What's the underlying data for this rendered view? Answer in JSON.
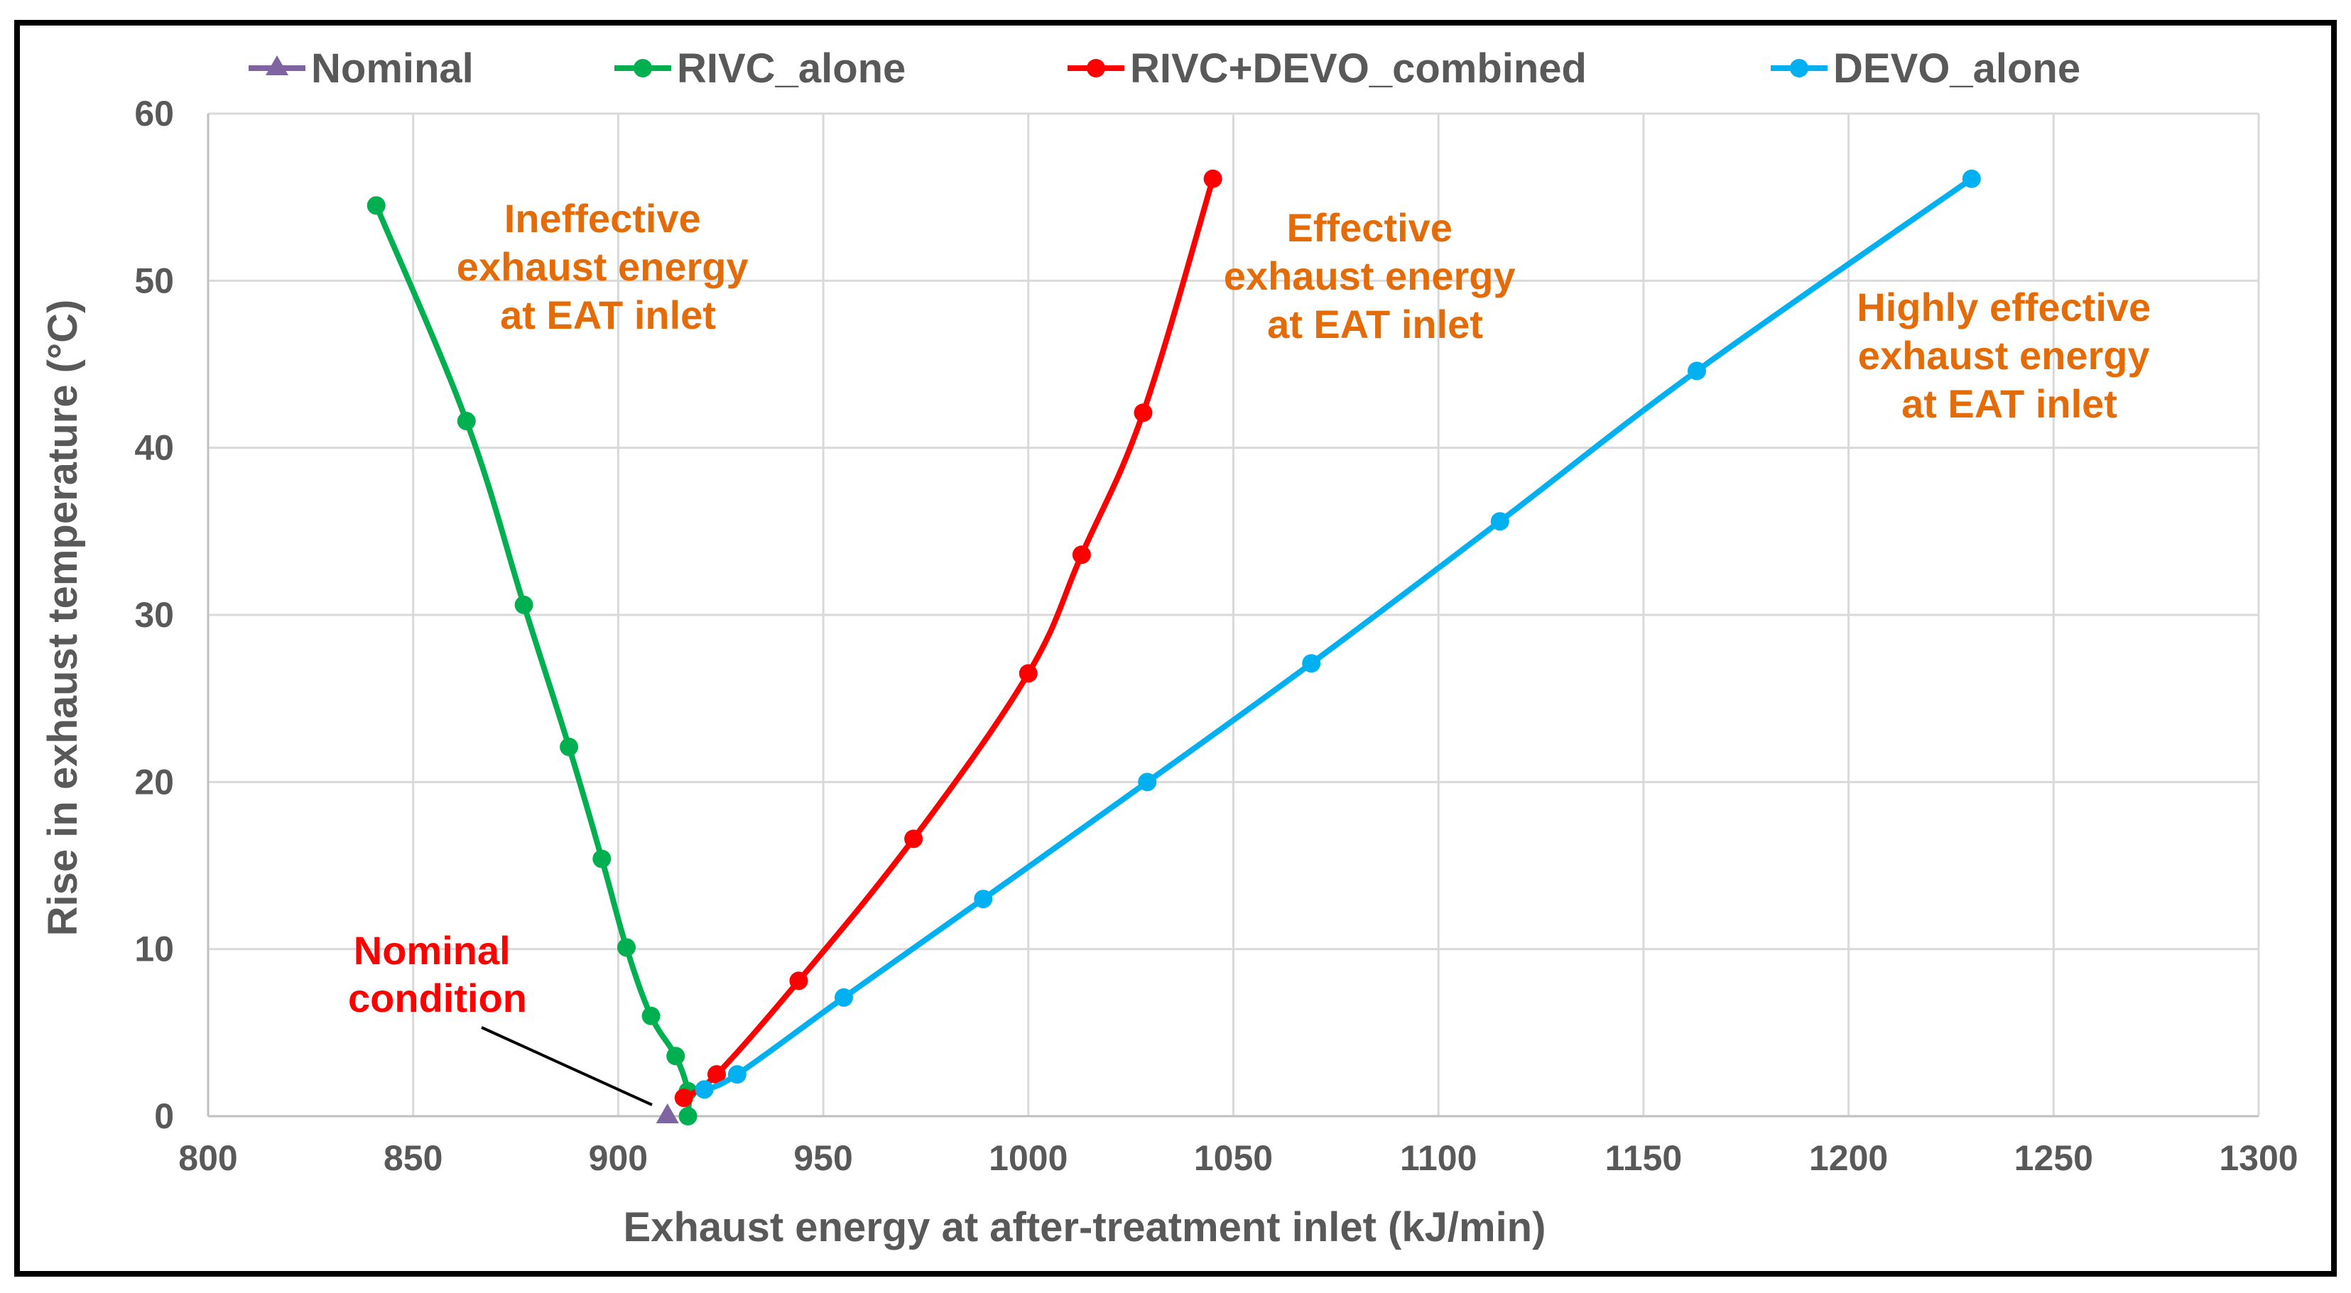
{
  "chart_data": {
    "type": "line",
    "title": "",
    "xlabel": "Exhaust energy at after-treatment inlet (kJ/min)",
    "ylabel": "Rise in exhaust temperature (°C)",
    "xlim": [
      800,
      1300
    ],
    "ylim": [
      0,
      60
    ],
    "xticks": [
      800,
      850,
      900,
      950,
      1000,
      1050,
      1100,
      1150,
      1200,
      1250,
      1300
    ],
    "yticks": [
      0,
      10,
      20,
      30,
      40,
      50,
      60
    ],
    "grid": true,
    "legend_position": "top",
    "series": [
      {
        "name": "Nominal",
        "color": "#8064A2",
        "marker": "triangle",
        "points": [
          [
            912,
            0
          ]
        ]
      },
      {
        "name": "RIVC_alone",
        "color": "#00B050",
        "marker": "circle",
        "points": [
          [
            841,
            54.5
          ],
          [
            863,
            41.6
          ],
          [
            877,
            30.6
          ],
          [
            888,
            22.1
          ],
          [
            896,
            15.4
          ],
          [
            902,
            10.1
          ],
          [
            908,
            6.0
          ],
          [
            914,
            3.6
          ],
          [
            917,
            1.5
          ],
          [
            917,
            0
          ]
        ]
      },
      {
        "name": "RIVC+DEVO_combined",
        "color": "#FF0000",
        "marker": "circle",
        "points": [
          [
            916,
            1.1
          ],
          [
            924,
            2.5
          ],
          [
            944,
            8.1
          ],
          [
            972,
            16.6
          ],
          [
            1000,
            26.5
          ],
          [
            1013,
            33.6
          ],
          [
            1028,
            42.1
          ],
          [
            1045,
            56.1
          ]
        ]
      },
      {
        "name": "DEVO_alone",
        "color": "#00B0F0",
        "marker": "circle",
        "points": [
          [
            921,
            1.6
          ],
          [
            929,
            2.5
          ],
          [
            955,
            7.1
          ],
          [
            989,
            13.0
          ],
          [
            1029,
            20.0
          ],
          [
            1069,
            27.1
          ],
          [
            1115,
            35.6
          ],
          [
            1163,
            44.6
          ],
          [
            1230,
            56.1
          ]
        ]
      }
    ],
    "annotations": [
      {
        "id": "ineffective",
        "lines": [
          "Ineffective",
          "exhaust energy",
          "at EAT inlet"
        ],
        "color": "#E36C09"
      },
      {
        "id": "effective",
        "lines": [
          "Effective",
          "exhaust energy",
          "at EAT inlet"
        ],
        "color": "#E36C09"
      },
      {
        "id": "highly",
        "lines": [
          "Highly effective",
          "exhaust energy",
          "at EAT inlet"
        ],
        "color": "#E36C09"
      },
      {
        "id": "nominal",
        "lines": [
          "Nominal",
          "condition"
        ],
        "color": "#FF0000"
      }
    ]
  }
}
